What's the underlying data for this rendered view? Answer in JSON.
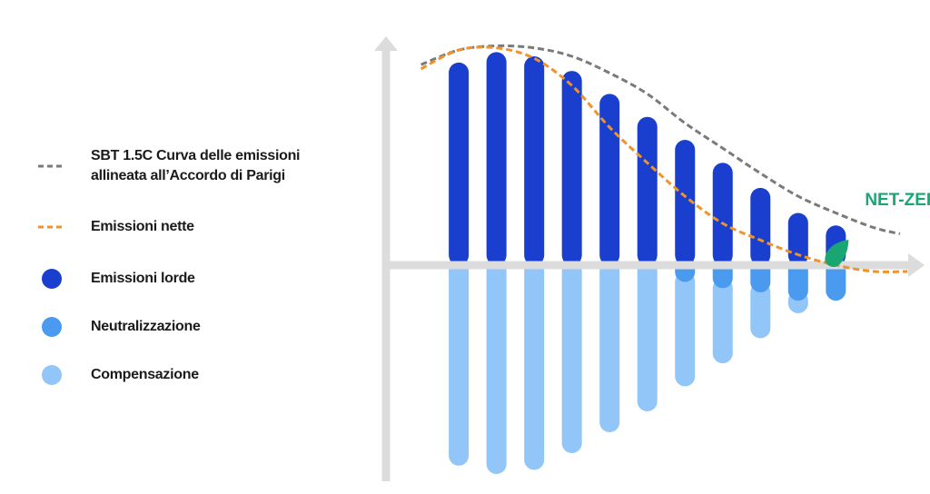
{
  "chart_data": {
    "type": "bar",
    "categories": [
      null,
      null,
      null,
      null,
      null,
      null,
      null,
      null,
      null,
      null,
      null
    ],
    "xlim": [
      -1.93,
      12.16
    ],
    "ylim": [
      -105,
      105
    ],
    "series": [
      {
        "name": "SBT 1.5C Curva delle emissioni allineata all’Accordo di Parigi",
        "type": "line",
        "color": "#7a7a7a",
        "x": [
          -1,
          0,
          1,
          2,
          3,
          4,
          5,
          6,
          7,
          8,
          9,
          10,
          11,
          11.7
        ],
        "values": [
          96,
          103,
          105,
          104,
          100,
          92,
          82,
          68,
          56,
          44,
          33,
          25,
          18,
          15
        ]
      },
      {
        "name": "Emissioni nette",
        "type": "line",
        "color": "#f0932b",
        "x": [
          -1,
          0,
          1,
          2,
          3,
          4,
          5,
          6,
          7,
          8,
          9,
          10,
          11,
          11.9
        ],
        "values": [
          94,
          103,
          104,
          99,
          86,
          66,
          49,
          33,
          20,
          12,
          5,
          0,
          -3,
          -3
        ]
      },
      {
        "name": "Emissioni lorde",
        "type": "bar",
        "color": "#1a3fcf",
        "values": [
          97,
          102,
          100,
          93,
          82,
          71,
          60,
          49,
          37,
          25,
          19
        ]
      },
      {
        "name": "Neutralizzazione",
        "type": "bar",
        "color": "#4a9af0",
        "values": [
          0,
          0,
          0,
          0,
          0,
          0,
          -8,
          -11,
          -13,
          -17,
          -17
        ]
      },
      {
        "name": "Compensazione",
        "type": "bar",
        "color": "#92c6f8",
        "values": [
          -96,
          -100,
          -98,
          -90,
          -80,
          -70,
          -50,
          -36,
          -22,
          -6,
          0
        ]
      }
    ],
    "annotations": [
      {
        "text": "NET-ZERO",
        "color": "#1aa672",
        "x": 10,
        "y": 0
      }
    ]
  }
}
